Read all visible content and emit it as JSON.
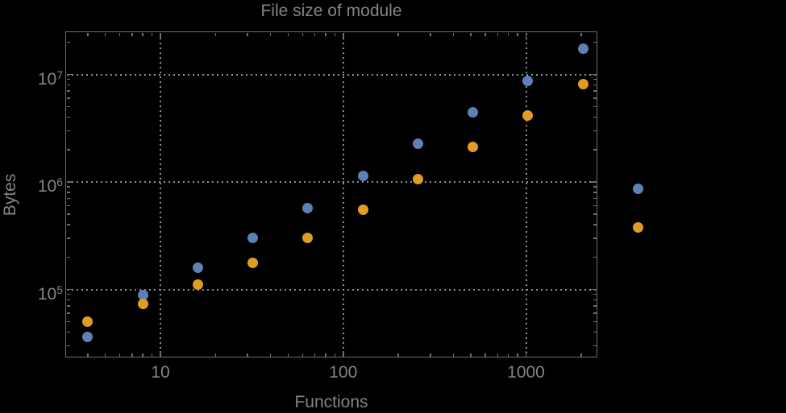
{
  "chart_data": {
    "type": "scatter",
    "title": "File size of module",
    "xlabel": "Functions",
    "ylabel": "Bytes",
    "x_scale": "log",
    "y_scale": "log",
    "grid": "dotted",
    "legend": "none",
    "x_tick_values": [
      10,
      100,
      1000
    ],
    "x_tick_labels": [
      "10",
      "100",
      "1000"
    ],
    "y_tick_values": [
      100000,
      1000000,
      10000000
    ],
    "y_tick_labels": [
      "10^5",
      "10^6",
      "10^7"
    ],
    "x_range": [
      3.05,
      2430
    ],
    "y_range": [
      23500,
      25000000
    ],
    "x": [
      4,
      8,
      16,
      32,
      64,
      128,
      256,
      512,
      1024,
      2048,
      4096
    ],
    "series": [
      {
        "name": "blue-series",
        "color": "#5e81b5",
        "values": [
          36000,
          89000,
          160000,
          300000,
          570000,
          1140000,
          2260000,
          4460000,
          8700000,
          17300000,
          860000
        ]
      },
      {
        "name": "orange-series",
        "color": "#e09c24",
        "values": [
          50000,
          73000,
          110000,
          177000,
          300000,
          550000,
          1060000,
          2100000,
          4150000,
          8200000,
          376000
        ]
      }
    ]
  },
  "colors": {
    "background": "#000000",
    "frame": "#6f6f6f",
    "grid": "#8f8f8f",
    "text": "#848484"
  }
}
